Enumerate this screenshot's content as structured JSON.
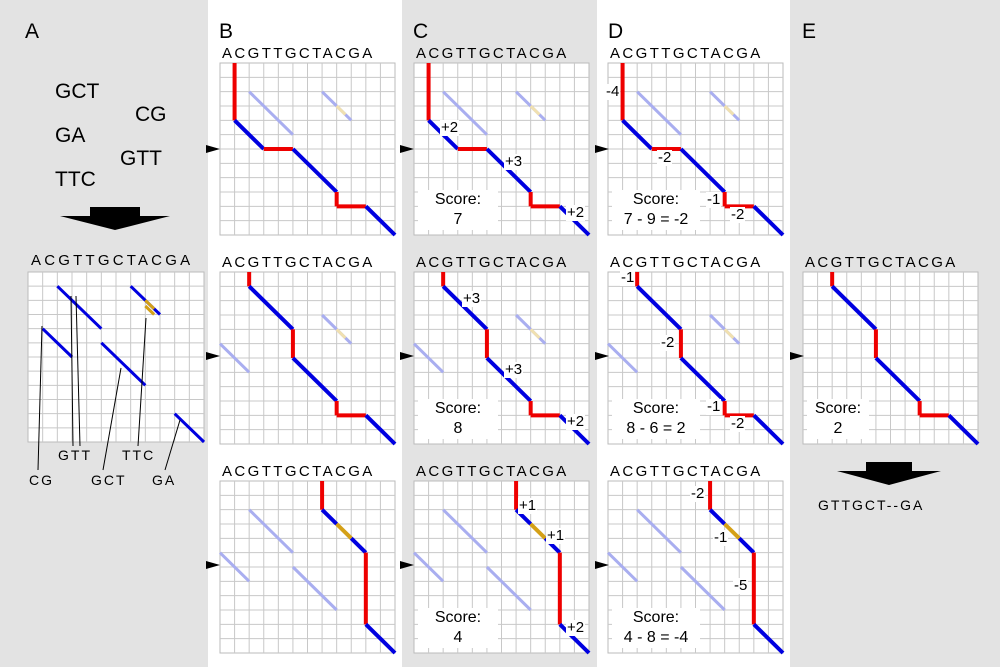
{
  "panels": [
    "A",
    "B",
    "C",
    "D",
    "E"
  ],
  "sequence": "ACGTTGCTACGA",
  "fragments": [
    "GCT",
    "CG",
    "GA",
    "GTT",
    "TTC"
  ],
  "fragment_labels": [
    "CG",
    "GTT",
    "GCT",
    "TTC",
    "GA"
  ],
  "scores": {
    "C1": "Score:\n7",
    "C2": "Score:\n8",
    "C3": "Score:\n4",
    "D1": "Score:\n7 - 9 = -2",
    "D2": "Score:\n8 - 6 = 2",
    "D3": "Score:\n4 - 8 = -4",
    "E": "Score:\n2"
  },
  "annotations": {
    "C1": [
      "+2",
      "+3",
      "+2"
    ],
    "C2": [
      "+3",
      "+3",
      "+2"
    ],
    "C3": [
      "+1",
      "+1",
      "+2"
    ],
    "D1": [
      "-4",
      "-2",
      "-1",
      "-2"
    ],
    "D2": [
      "-1",
      "-2",
      "-1",
      "-2"
    ],
    "D3": [
      "-2",
      "-1",
      "-5"
    ]
  },
  "alignment": "GTTGCT--GA",
  "colors": {
    "panel_bg": "#e3e3e3",
    "match": "#0000e0",
    "gap": "#ee0000",
    "overlap": "#d4a017",
    "faint": "#a9aef0",
    "faint_overlap": "#f0e0b0"
  }
}
